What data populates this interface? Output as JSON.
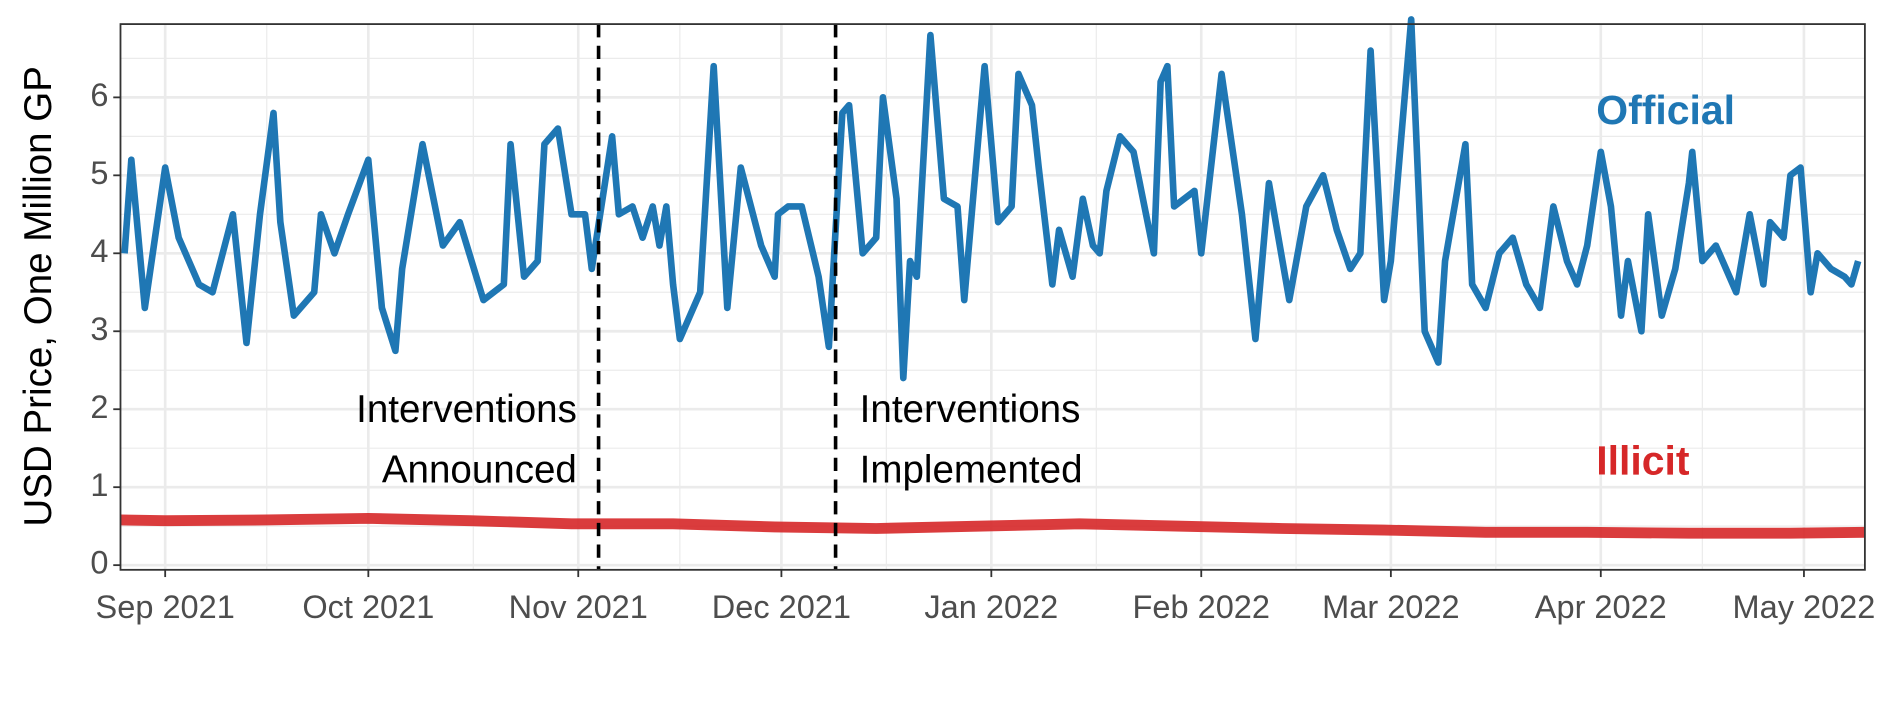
{
  "chart_data": {
    "type": "line",
    "ylabel": "USD Price, One Million GP",
    "xlim": [
      -6.6,
      251
    ],
    "ylim": [
      -0.06,
      6.94
    ],
    "xticks": [
      {
        "value": 0,
        "label": "Sep 2021"
      },
      {
        "value": 30,
        "label": "Oct 2021"
      },
      {
        "value": 61,
        "label": "Nov 2021"
      },
      {
        "value": 91,
        "label": "Dec 2021"
      },
      {
        "value": 122,
        "label": "Jan 2022"
      },
      {
        "value": 153,
        "label": "Feb 2022"
      },
      {
        "value": 181,
        "label": "Mar 2022"
      },
      {
        "value": 212,
        "label": "Apr 2022"
      },
      {
        "value": 242,
        "label": "May 2022"
      }
    ],
    "yticks": [
      0,
      1,
      2,
      3,
      4,
      5,
      6
    ],
    "grid": true,
    "events": [
      {
        "x": 64,
        "label": [
          "Interventions",
          "Announced"
        ],
        "side": "left"
      },
      {
        "x": 99,
        "label": [
          "Interventions",
          "Implemented"
        ],
        "side": "right"
      }
    ],
    "series": [
      {
        "name": "Official",
        "color": "#1f77b4",
        "label_y": 5.8,
        "x": [
          -6,
          -5,
          -3,
          0,
          2,
          5,
          7,
          10,
          12,
          14,
          16,
          17,
          19,
          22,
          23,
          25,
          27,
          30,
          32,
          34,
          35,
          38,
          41,
          43.5,
          47,
          50,
          51,
          53,
          55,
          56,
          58,
          60,
          62,
          63,
          66,
          67,
          69,
          70.5,
          72,
          73,
          74,
          75,
          76,
          79,
          81,
          83,
          85,
          88,
          90,
          90.5,
          92,
          94,
          96.5,
          98,
          100,
          101,
          103,
          105,
          106,
          108,
          109,
          110,
          111,
          113,
          115,
          117,
          118,
          119,
          121,
          123,
          125,
          126,
          128,
          129,
          131,
          132,
          134,
          135.5,
          137,
          138,
          139,
          141,
          143,
          146,
          147,
          148,
          149,
          152,
          153,
          156,
          159,
          161,
          163,
          166,
          168.5,
          171,
          173,
          175,
          176.5,
          178,
          180,
          181,
          184,
          186,
          188,
          189,
          192,
          193,
          195,
          197,
          199,
          201,
          203,
          205,
          207,
          208.5,
          210,
          212,
          213.5,
          215,
          216,
          218,
          219,
          221,
          223,
          225,
          225.5,
          227,
          229,
          232,
          234,
          236,
          237,
          239,
          240,
          241.5,
          243,
          244,
          246,
          248,
          249,
          250
        ],
        "values": [
          4.0,
          5.2,
          3.3,
          5.1,
          4.2,
          3.6,
          3.5,
          4.5,
          2.85,
          4.5,
          5.8,
          4.4,
          3.2,
          3.5,
          4.5,
          4.0,
          4.5,
          5.2,
          3.3,
          2.75,
          3.8,
          5.4,
          4.1,
          4.4,
          3.4,
          3.6,
          5.4,
          3.7,
          3.9,
          5.4,
          5.6,
          4.5,
          4.5,
          3.8,
          5.5,
          4.5,
          4.6,
          4.2,
          4.6,
          4.1,
          4.6,
          3.6,
          2.9,
          3.5,
          6.4,
          3.3,
          5.1,
          4.1,
          3.7,
          4.5,
          4.6,
          4.6,
          3.7,
          2.8,
          5.8,
          5.9,
          4.0,
          4.2,
          6.0,
          4.7,
          2.4,
          3.9,
          3.7,
          6.8,
          4.7,
          4.6,
          3.4,
          4.4,
          6.4,
          4.4,
          4.6,
          6.3,
          5.9,
          5.1,
          3.6,
          4.3,
          3.7,
          4.7,
          4.1,
          4.0,
          4.8,
          5.5,
          5.3,
          4.0,
          6.2,
          6.4,
          4.6,
          4.8,
          4.0,
          6.3,
          4.5,
          2.9,
          4.9,
          3.4,
          4.6,
          5.0,
          4.3,
          3.8,
          4.0,
          6.6,
          3.4,
          3.9,
          7.0,
          3.0,
          2.6,
          3.9,
          5.4,
          3.6,
          3.3,
          4.0,
          4.2,
          3.6,
          3.3,
          4.6,
          3.9,
          3.6,
          4.1,
          5.3,
          4.6,
          3.2,
          3.9,
          3.0,
          4.5,
          3.2,
          3.8,
          4.9,
          5.3,
          3.9,
          4.1,
          3.5,
          4.5,
          3.6,
          4.4,
          4.2,
          5.0,
          5.1,
          3.5,
          4.0,
          3.8,
          3.7,
          3.6,
          3.9
        ]
      },
      {
        "name": "Illicit",
        "color": "#d62728",
        "label_y": 1.3,
        "x": [
          -6.6,
          0,
          15,
          30,
          45,
          60,
          75,
          90,
          105,
          120,
          135,
          150,
          165,
          180,
          195,
          210,
          225,
          240,
          251
        ],
        "values": [
          0.58,
          0.57,
          0.58,
          0.6,
          0.57,
          0.53,
          0.53,
          0.49,
          0.47,
          0.5,
          0.53,
          0.5,
          0.47,
          0.45,
          0.42,
          0.42,
          0.41,
          0.41,
          0.42
        ]
      }
    ]
  }
}
